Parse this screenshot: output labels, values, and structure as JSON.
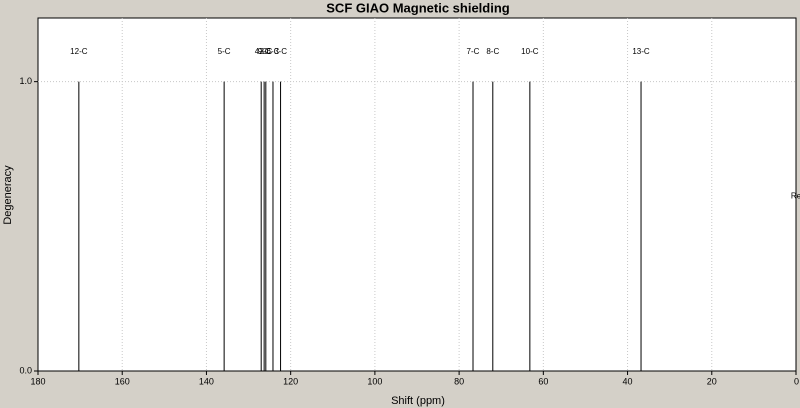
{
  "chart_data": {
    "type": "stick",
    "title": "SCF GIAO Magnetic shielding",
    "x_label": "Shift (ppm)",
    "y_label": "Degeneracy",
    "x": [
      170.3,
      135.8,
      127.0,
      126.3,
      125.9,
      124.2,
      122.4,
      76.7,
      72.0,
      63.2,
      36.8,
      0
    ],
    "values": [
      1,
      1,
      1,
      1,
      1,
      1,
      1,
      1,
      1,
      1,
      1,
      0.5
    ],
    "point_labels": [
      "12-C",
      "5-C",
      "4-C",
      "9-C",
      "2-C",
      "6-C",
      "3-C",
      "7-C",
      "8-C",
      "10-C",
      "13-C",
      "Re"
    ],
    "color": "#000000",
    "xlim": [
      180,
      0
    ],
    "xticks": [
      180,
      160,
      140,
      120,
      100,
      80,
      60,
      40,
      20,
      0
    ],
    "ylim": [
      0,
      1.22
    ],
    "yticks": [
      {
        "value": 0,
        "label": "0.0"
      },
      {
        "value": 1,
        "label": "1.0"
      }
    ],
    "grid": true
  }
}
